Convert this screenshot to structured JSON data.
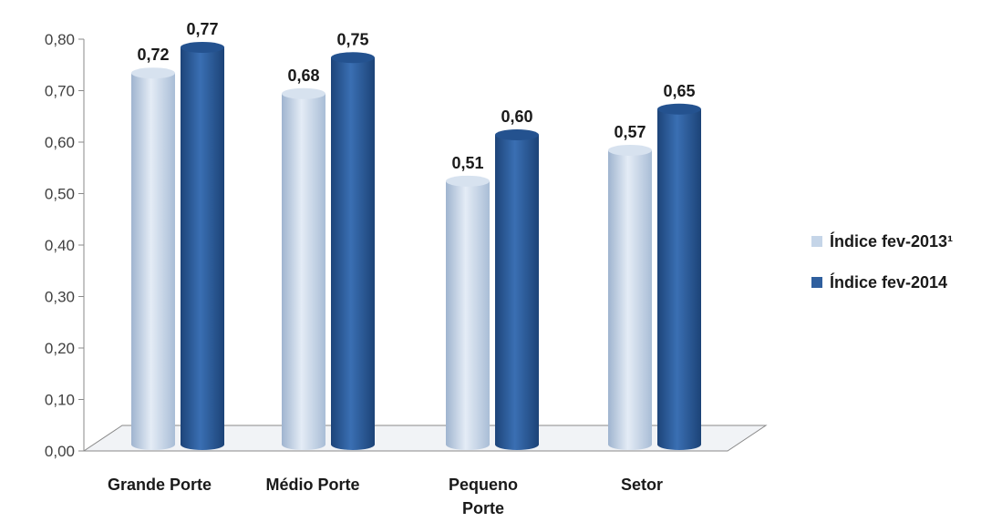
{
  "chart_data": {
    "type": "bar",
    "categories": [
      [
        "Grande Porte"
      ],
      [
        "Médio Porte"
      ],
      [
        "Pequeno",
        "Porte"
      ],
      [
        "Setor"
      ]
    ],
    "series": [
      {
        "name": "Índice fev-2013¹",
        "color": "#c5d5e8",
        "values": [
          0.72,
          0.68,
          0.51,
          0.57
        ],
        "labels": [
          "0,72",
          "0,68",
          "0,51",
          "0,57"
        ]
      },
      {
        "name": "Índice fev-2014",
        "color": "#2f5f9e",
        "values": [
          0.77,
          0.75,
          0.6,
          0.65
        ],
        "labels": [
          "0,77",
          "0,75",
          "0,60",
          "0,65"
        ]
      }
    ],
    "yticks": [
      "0,00",
      "0,10",
      "0,20",
      "0,30",
      "0,40",
      "0,50",
      "0,60",
      "0,70",
      "0,80"
    ],
    "ylim": [
      0,
      0.8
    ],
    "legend_position": "right",
    "style": "3d-cylinder"
  }
}
